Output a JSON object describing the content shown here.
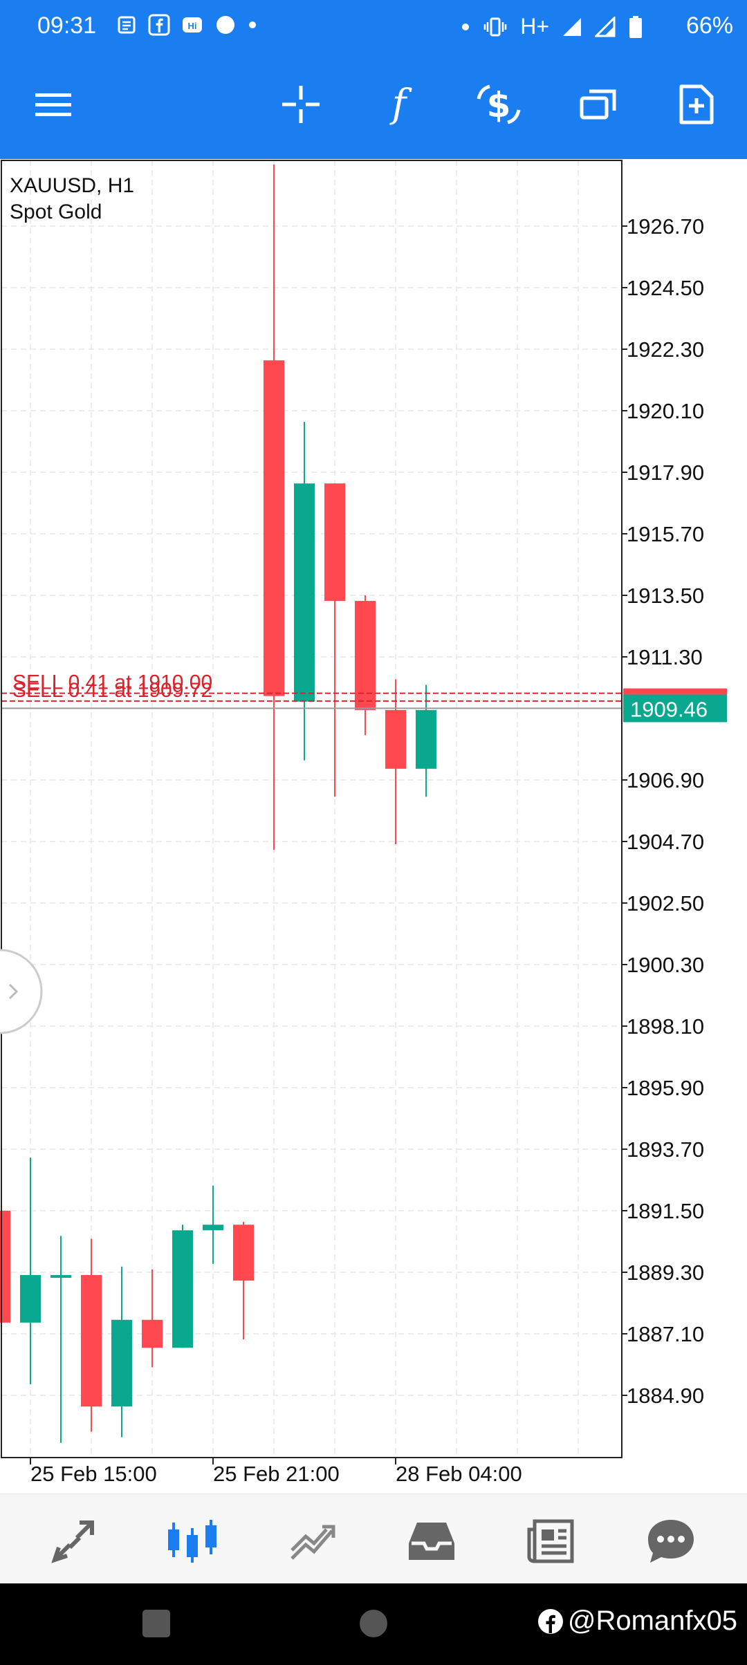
{
  "status_bar": {
    "time": "09:31",
    "network": "H+",
    "battery": "66%"
  },
  "symbol_info": {
    "line1": "XAUUSD, H1",
    "line2": "Spot Gold"
  },
  "colors": {
    "bull": "#0aa88f",
    "bear": "#ff4850",
    "trade_line": "#d9232b",
    "accent": "#1a7ef0"
  },
  "trade_lines": [
    {
      "label": "SELL 0.41 at 1910.00",
      "price": 1910.0
    },
    {
      "label": "SELL 0.41 at 1909.72",
      "price": 1909.72
    }
  ],
  "chart_data": {
    "type": "candlestick",
    "symbol": "XAUUSD",
    "timeframe": "H1",
    "current_price": 1909.46,
    "price_ticks": [
      "1926.70",
      "1924.50",
      "1922.30",
      "1920.10",
      "1917.90",
      "1915.70",
      "1913.50",
      "1911.30",
      "1906.90",
      "1904.70",
      "1902.50",
      "1900.30",
      "1898.10",
      "1895.90",
      "1893.70",
      "1891.50",
      "1889.30",
      "1887.10",
      "1884.90"
    ],
    "time_labels": [
      "25 Feb 15:00",
      "25 Feb 21:00",
      "28 Feb 04:00"
    ],
    "candles": [
      {
        "o": 1891.5,
        "h": 1891.5,
        "l": 1887.5,
        "c": 1887.5
      },
      {
        "o": 1887.5,
        "h": 1893.4,
        "l": 1885.3,
        "c": 1889.2
      },
      {
        "o": 1889.2,
        "h": 1890.6,
        "l": 1883.2,
        "c": 1889.2
      },
      {
        "o": 1889.2,
        "h": 1890.5,
        "l": 1883.6,
        "c": 1884.5
      },
      {
        "o": 1884.5,
        "h": 1889.5,
        "l": 1883.4,
        "c": 1887.6
      },
      {
        "o": 1887.6,
        "h": 1889.4,
        "l": 1885.9,
        "c": 1886.6
      },
      {
        "o": 1886.6,
        "h": 1891.0,
        "l": 1886.6,
        "c": 1890.8
      },
      {
        "o": 1890.8,
        "h": 1892.4,
        "l": 1889.6,
        "c": 1891.0
      },
      {
        "o": 1891.0,
        "h": 1891.1,
        "l": 1886.9,
        "c": 1889.0
      },
      {
        "o": 1921.9,
        "h": 1928.9,
        "l": 1904.4,
        "c": 1909.9
      },
      {
        "o": 1909.7,
        "h": 1919.7,
        "l": 1907.6,
        "c": 1917.5
      },
      {
        "o": 1917.5,
        "h": 1917.5,
        "l": 1906.3,
        "c": 1913.3
      },
      {
        "o": 1913.3,
        "h": 1913.5,
        "l": 1908.5,
        "c": 1909.4
      },
      {
        "o": 1909.4,
        "h": 1910.5,
        "l": 1904.6,
        "c": 1907.3
      },
      {
        "o": 1907.3,
        "h": 1910.3,
        "l": 1906.3,
        "c": 1909.4
      }
    ]
  },
  "watermark": "@Romanfx05"
}
